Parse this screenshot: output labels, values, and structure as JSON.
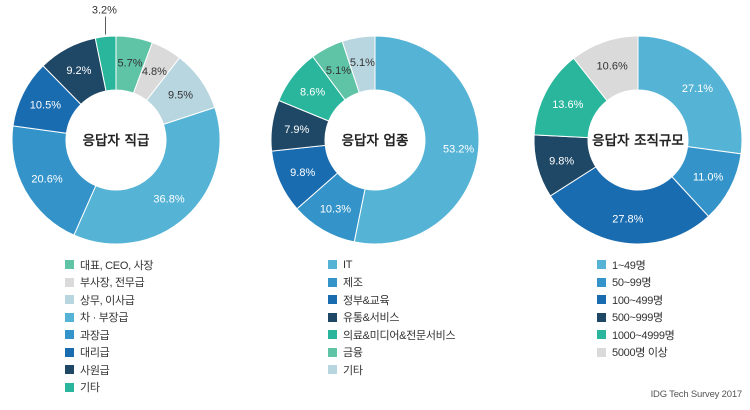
{
  "source": "IDG Tech Survey 2017",
  "chart_data": [
    {
      "type": "pie",
      "title": "응답자 직급",
      "slices": [
        {
          "label": "대표, CEO, 사장",
          "value": 5.7,
          "value_label": "5.7%",
          "color": "#5fc3a6"
        },
        {
          "label": "부사장, 전무급",
          "value": 4.8,
          "value_label": "4.8%",
          "color": "#dadada"
        },
        {
          "label": "상무, 이사급",
          "value": 9.5,
          "value_label": "9.5%",
          "color": "#b8d6e0"
        },
        {
          "label": "차 · 부장급",
          "value": 36.8,
          "value_label": "36.8%",
          "color": "#55b3d6"
        },
        {
          "label": "과장급",
          "value": 20.6,
          "value_label": "20.6%",
          "color": "#3494c9"
        },
        {
          "label": "대리급",
          "value": 10.5,
          "value_label": "10.5%",
          "color": "#1a6cb0"
        },
        {
          "label": "사원급",
          "value": 9.2,
          "value_label": "9.2%",
          "color": "#1f4866"
        },
        {
          "label": "기타",
          "value": 3.2,
          "value_label": "3.2%",
          "color": "#2ab69c"
        }
      ]
    },
    {
      "type": "pie",
      "title": "응답자 업종",
      "slices": [
        {
          "label": "IT",
          "value": 53.2,
          "value_label": "53.2%",
          "color": "#55b3d6"
        },
        {
          "label": "제조",
          "value": 10.3,
          "value_label": "10.3%",
          "color": "#3494c9"
        },
        {
          "label": "정부&교육",
          "value": 9.8,
          "value_label": "9.8%",
          "color": "#1a6cb0"
        },
        {
          "label": "유통&서비스",
          "value": 7.9,
          "value_label": "7.9%",
          "color": "#1f4866"
        },
        {
          "label": "의료&미디어&전문서비스",
          "value": 8.6,
          "value_label": "8.6%",
          "color": "#2ab69c"
        },
        {
          "label": "금융",
          "value": 5.1,
          "value_label": "5.1%",
          "color": "#5fc3a6"
        },
        {
          "label": "기타",
          "value": 5.1,
          "value_label": "5.1%",
          "color": "#b8d6e0"
        }
      ]
    },
    {
      "type": "pie",
      "title": "응답자 조직규모",
      "slices": [
        {
          "label": "1~49명",
          "value": 27.1,
          "value_label": "27.1%",
          "color": "#55b3d6"
        },
        {
          "label": "50~99명",
          "value": 11.0,
          "value_label": "11.0%",
          "color": "#3494c9"
        },
        {
          "label": "100~499명",
          "value": 27.8,
          "value_label": "27.8%",
          "color": "#1a6cb0"
        },
        {
          "label": "500~999명",
          "value": 9.8,
          "value_label": "9.8%",
          "color": "#1f4866"
        },
        {
          "label": "1000~4999명",
          "value": 13.6,
          "value_label": "13.6%",
          "color": "#2ab69c"
        },
        {
          "label": "5000명 이상",
          "value": 10.6,
          "value_label": "10.6%",
          "color": "#dadada"
        }
      ]
    }
  ]
}
